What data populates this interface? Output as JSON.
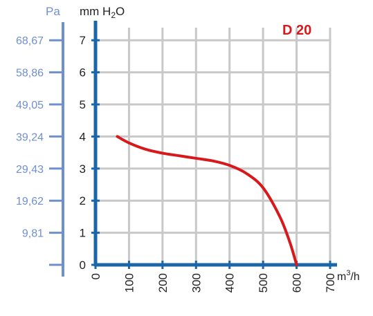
{
  "chart_data": {
    "type": "line",
    "title": "D 20",
    "title_color": "#d7191c",
    "xlabel_html": {
      "base": "m",
      "sup": "3",
      "rest": "/h"
    },
    "ylabel_left": "Pa",
    "ylabel_right": "mm H2O",
    "x_range": [
      0,
      700
    ],
    "x_ticks": [
      "0",
      "100",
      "200",
      "300",
      "400",
      "500",
      "600",
      "700"
    ],
    "y_range": [
      0,
      7.4
    ],
    "y_ticks": [
      "0",
      "1",
      "2",
      "3",
      "4",
      "5",
      "6",
      "7"
    ],
    "pa_ticks": [
      "9,81",
      "19,62",
      "29,43",
      "39,24",
      "49,05",
      "58,86",
      "68,67"
    ],
    "grid": true,
    "axis_color": "#1b66a8",
    "pa_axis_color": "#6f8fcf",
    "series": [
      {
        "color": "#d7191c",
        "x": [
          65,
          100,
          150,
          200,
          250,
          300,
          350,
          400,
          450,
          500,
          550,
          580,
          600
        ],
        "y": [
          4.0,
          3.8,
          3.6,
          3.48,
          3.4,
          3.32,
          3.24,
          3.1,
          2.85,
          2.4,
          1.5,
          0.7,
          0.0
        ]
      }
    ]
  }
}
